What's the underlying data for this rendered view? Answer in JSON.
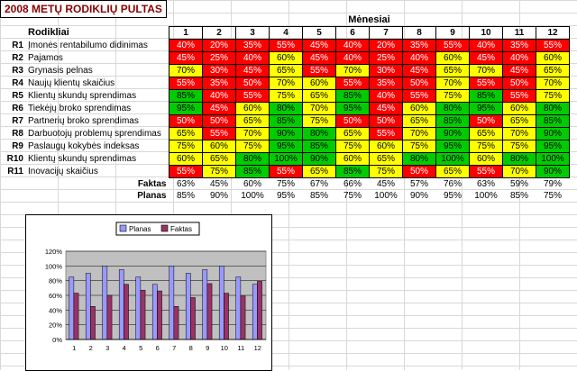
{
  "title": "2008 METŲ RODIKLIŲ PULTAS",
  "header": {
    "months_label": "Mėnesiai",
    "indicators_label": "Rodikliai"
  },
  "months": [
    "1",
    "2",
    "3",
    "4",
    "5",
    "6",
    "7",
    "8",
    "9",
    "10",
    "11",
    "12"
  ],
  "rows": [
    {
      "id": "R1",
      "name": "Įmonės rentabilumo didinimas",
      "values": [
        "40%",
        "20%",
        "35%",
        "55%",
        "45%",
        "40%",
        "20%",
        "35%",
        "55%",
        "40%",
        "35%",
        "55%"
      ],
      "colors": [
        "r",
        "r",
        "r",
        "r",
        "r",
        "r",
        "r",
        "r",
        "r",
        "r",
        "r",
        "r"
      ]
    },
    {
      "id": "R2",
      "name": "Pajamos",
      "values": [
        "45%",
        "25%",
        "40%",
        "60%",
        "45%",
        "40%",
        "25%",
        "40%",
        "60%",
        "45%",
        "40%",
        "60%"
      ],
      "colors": [
        "r",
        "r",
        "r",
        "y",
        "r",
        "r",
        "r",
        "r",
        "y",
        "r",
        "r",
        "y"
      ]
    },
    {
      "id": "R3",
      "name": "Grynasis pelnas",
      "values": [
        "70%",
        "30%",
        "45%",
        "65%",
        "55%",
        "70%",
        "30%",
        "45%",
        "65%",
        "70%",
        "45%",
        "65%"
      ],
      "colors": [
        "y",
        "r",
        "r",
        "y",
        "r",
        "y",
        "r",
        "r",
        "y",
        "y",
        "r",
        "y"
      ]
    },
    {
      "id": "R4",
      "name": "Naujų klientų skaičius",
      "values": [
        "55%",
        "35%",
        "50%",
        "70%",
        "60%",
        "55%",
        "35%",
        "50%",
        "70%",
        "55%",
        "50%",
        "70%"
      ],
      "colors": [
        "r",
        "r",
        "r",
        "y",
        "y",
        "r",
        "r",
        "r",
        "y",
        "r",
        "r",
        "y"
      ]
    },
    {
      "id": "R5",
      "name": "Klientų skundų sprendimas",
      "values": [
        "85%",
        "40%",
        "55%",
        "75%",
        "65%",
        "85%",
        "40%",
        "55%",
        "75%",
        "85%",
        "55%",
        "75%"
      ],
      "colors": [
        "g",
        "r",
        "r",
        "y",
        "y",
        "g",
        "r",
        "r",
        "y",
        "g",
        "r",
        "y"
      ]
    },
    {
      "id": "R6",
      "name": "Tiekėjų broko sprendimas",
      "values": [
        "95%",
        "45%",
        "60%",
        "80%",
        "70%",
        "95%",
        "45%",
        "60%",
        "80%",
        "95%",
        "60%",
        "80%"
      ],
      "colors": [
        "g",
        "r",
        "y",
        "g",
        "y",
        "g",
        "r",
        "y",
        "g",
        "g",
        "y",
        "g"
      ]
    },
    {
      "id": "R7",
      "name": "Partnerių broko sprendimas",
      "values": [
        "50%",
        "50%",
        "65%",
        "85%",
        "75%",
        "50%",
        "50%",
        "65%",
        "85%",
        "50%",
        "65%",
        "85%"
      ],
      "colors": [
        "r",
        "r",
        "y",
        "g",
        "y",
        "r",
        "r",
        "y",
        "g",
        "r",
        "y",
        "g"
      ]
    },
    {
      "id": "R8",
      "name": "Darbuotojų problemų sprendimas",
      "values": [
        "65%",
        "55%",
        "70%",
        "90%",
        "80%",
        "65%",
        "55%",
        "70%",
        "90%",
        "65%",
        "70%",
        "90%"
      ],
      "colors": [
        "y",
        "r",
        "y",
        "g",
        "g",
        "y",
        "r",
        "y",
        "g",
        "y",
        "y",
        "g"
      ]
    },
    {
      "id": "R9",
      "name": "Paslaugų kokybės indeksas",
      "values": [
        "75%",
        "60%",
        "75%",
        "95%",
        "85%",
        "75%",
        "60%",
        "75%",
        "95%",
        "75%",
        "75%",
        "95%"
      ],
      "colors": [
        "y",
        "y",
        "y",
        "g",
        "g",
        "y",
        "y",
        "y",
        "g",
        "y",
        "y",
        "g"
      ]
    },
    {
      "id": "R10",
      "name": "Klientų skundų sprendimas",
      "values": [
        "60%",
        "65%",
        "80%",
        "100%",
        "90%",
        "60%",
        "65%",
        "80%",
        "100%",
        "60%",
        "80%",
        "100%"
      ],
      "colors": [
        "y",
        "y",
        "g",
        "g",
        "g",
        "y",
        "y",
        "g",
        "g",
        "y",
        "g",
        "g"
      ]
    },
    {
      "id": "R11",
      "name": "Inovacijų skaičius",
      "values": [
        "55%",
        "75%",
        "85%",
        "55%",
        "65%",
        "85%",
        "75%",
        "50%",
        "65%",
        "55%",
        "70%",
        "90%"
      ],
      "colors": [
        "r",
        "y",
        "g",
        "r",
        "y",
        "g",
        "y",
        "r",
        "y",
        "r",
        "y",
        "g"
      ]
    }
  ],
  "summary": {
    "faktas_label": "Faktas",
    "faktas": [
      "63%",
      "45%",
      "60%",
      "75%",
      "67%",
      "66%",
      "45%",
      "57%",
      "76%",
      "63%",
      "59%",
      "79%"
    ],
    "planas_label": "Planas",
    "planas": [
      "85%",
      "90%",
      "100%",
      "95%",
      "85%",
      "75%",
      "100%",
      "90%",
      "95%",
      "100%",
      "85%",
      "75%"
    ]
  },
  "chart_data": {
    "type": "bar",
    "categories": [
      "1",
      "2",
      "3",
      "4",
      "5",
      "6",
      "7",
      "8",
      "9",
      "10",
      "11",
      "12"
    ],
    "series": [
      {
        "name": "Planas",
        "values": [
          85,
          90,
          100,
          95,
          85,
          75,
          100,
          90,
          95,
          100,
          85,
          75
        ],
        "color": "#9999ff"
      },
      {
        "name": "Faktas",
        "values": [
          63,
          45,
          60,
          75,
          67,
          66,
          45,
          57,
          76,
          63,
          59,
          79
        ],
        "color": "#993366"
      }
    ],
    "yticks": [
      "0%",
      "20%",
      "40%",
      "60%",
      "80%",
      "100%",
      "120%"
    ],
    "ylim": [
      0,
      120
    ],
    "legend": "top"
  },
  "colors": {
    "red": "#ff0000",
    "yellow": "#ffff00",
    "green": "#00cc00",
    "plot_bg": "#c0c0c0"
  }
}
